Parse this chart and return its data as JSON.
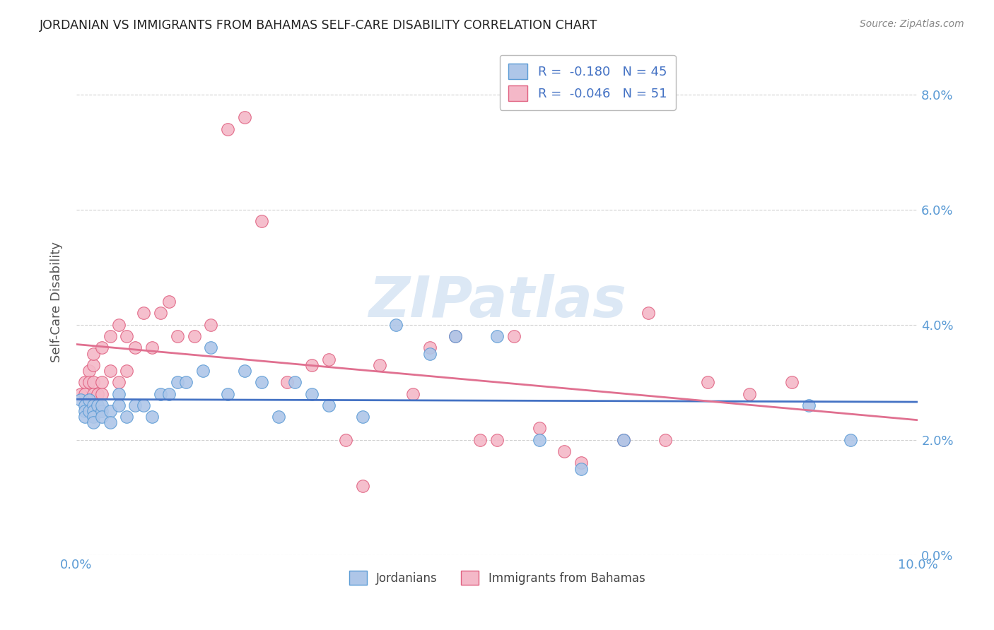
{
  "title": "JORDANIAN VS IMMIGRANTS FROM BAHAMAS SELF-CARE DISABILITY CORRELATION CHART",
  "source": "Source: ZipAtlas.com",
  "ylabel": "Self-Care Disability",
  "xlim": [
    0.0,
    0.1
  ],
  "ylim": [
    0.0,
    0.088
  ],
  "yticks": [
    0.0,
    0.02,
    0.04,
    0.06,
    0.08
  ],
  "xticks": [
    0.0,
    0.1
  ],
  "jordanians_x": [
    0.0005,
    0.001,
    0.001,
    0.001,
    0.0015,
    0.0015,
    0.002,
    0.002,
    0.002,
    0.002,
    0.0025,
    0.003,
    0.003,
    0.003,
    0.004,
    0.004,
    0.005,
    0.005,
    0.006,
    0.007,
    0.008,
    0.009,
    0.01,
    0.011,
    0.012,
    0.013,
    0.015,
    0.016,
    0.018,
    0.02,
    0.022,
    0.024,
    0.026,
    0.028,
    0.03,
    0.034,
    0.038,
    0.042,
    0.045,
    0.05,
    0.055,
    0.06,
    0.065,
    0.087,
    0.092
  ],
  "jordanians_y": [
    0.027,
    0.026,
    0.025,
    0.024,
    0.027,
    0.025,
    0.026,
    0.025,
    0.024,
    0.023,
    0.026,
    0.025,
    0.026,
    0.024,
    0.025,
    0.023,
    0.028,
    0.026,
    0.024,
    0.026,
    0.026,
    0.024,
    0.028,
    0.028,
    0.03,
    0.03,
    0.032,
    0.036,
    0.028,
    0.032,
    0.03,
    0.024,
    0.03,
    0.028,
    0.026,
    0.024,
    0.04,
    0.035,
    0.038,
    0.038,
    0.02,
    0.015,
    0.02,
    0.026,
    0.02
  ],
  "bahamas_x": [
    0.0005,
    0.001,
    0.001,
    0.0015,
    0.0015,
    0.002,
    0.002,
    0.002,
    0.002,
    0.0025,
    0.003,
    0.003,
    0.003,
    0.004,
    0.004,
    0.005,
    0.005,
    0.006,
    0.006,
    0.007,
    0.008,
    0.009,
    0.01,
    0.011,
    0.012,
    0.014,
    0.016,
    0.018,
    0.02,
    0.022,
    0.025,
    0.028,
    0.03,
    0.032,
    0.034,
    0.036,
    0.04,
    0.042,
    0.045,
    0.048,
    0.05,
    0.052,
    0.055,
    0.058,
    0.06,
    0.065,
    0.068,
    0.07,
    0.075,
    0.08,
    0.085
  ],
  "bahamas_y": [
    0.028,
    0.03,
    0.028,
    0.032,
    0.03,
    0.033,
    0.03,
    0.028,
    0.035,
    0.028,
    0.036,
    0.03,
    0.028,
    0.038,
    0.032,
    0.03,
    0.04,
    0.038,
    0.032,
    0.036,
    0.042,
    0.036,
    0.042,
    0.044,
    0.038,
    0.038,
    0.04,
    0.074,
    0.076,
    0.058,
    0.03,
    0.033,
    0.034,
    0.02,
    0.012,
    0.033,
    0.028,
    0.036,
    0.038,
    0.02,
    0.02,
    0.038,
    0.022,
    0.018,
    0.016,
    0.02,
    0.042,
    0.02,
    0.03,
    0.028,
    0.03
  ],
  "jordanians_color": "#aec6e8",
  "jordanians_edge": "#5b9bd5",
  "bahamas_color": "#f4b8c8",
  "bahamas_edge": "#e06080",
  "line_jordan_color": "#4472c4",
  "line_bahamas_color": "#e07090",
  "watermark_text": "ZIPatlas",
  "watermark_color": "#dce8f5",
  "background_color": "#ffffff",
  "grid_color": "#cccccc",
  "tick_label_color": "#5b9bd5",
  "title_color": "#222222",
  "source_color": "#888888",
  "ylabel_color": "#555555",
  "legend_top_label1": "R =  -0.180   N = 45",
  "legend_top_label2": "R =  -0.046   N = 51",
  "legend_bottom_label1": "Jordanians",
  "legend_bottom_label2": "Immigrants from Bahamas"
}
